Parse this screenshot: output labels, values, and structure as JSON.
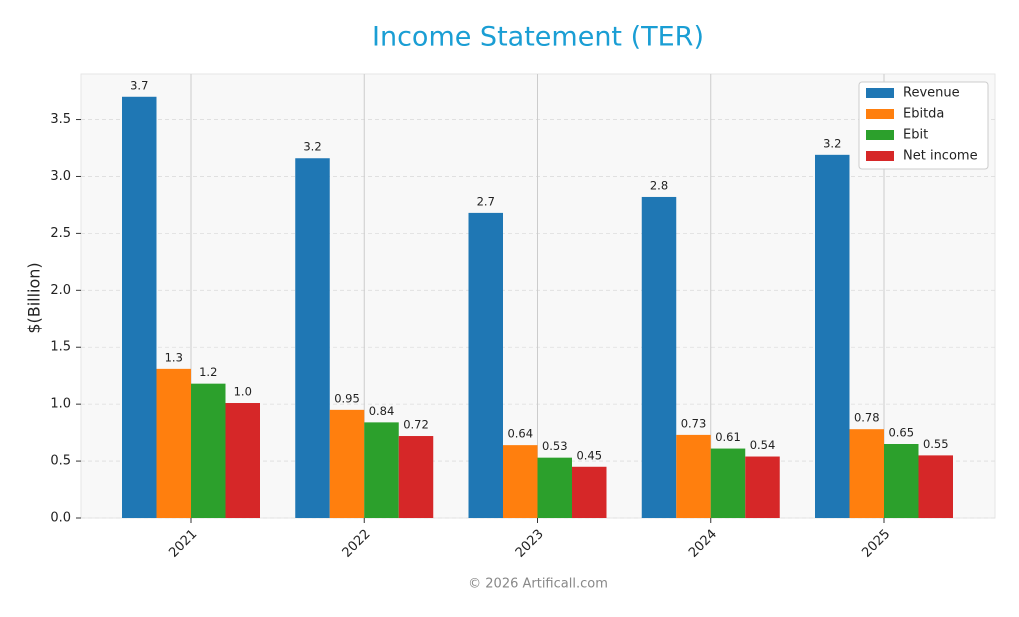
{
  "chart_data": {
    "type": "bar",
    "title": "Income Statement (TER)",
    "ylabel": "$(Billion)",
    "footer": "© 2026 Artificall.com",
    "categories": [
      "2021",
      "2022",
      "2023",
      "2024",
      "2025"
    ],
    "series": [
      {
        "name": "Revenue",
        "color": "#1f77b4",
        "values": [
          3.7,
          3.16,
          2.68,
          2.82,
          3.19
        ],
        "value_labels": [
          "3.7",
          "3.2",
          "2.7",
          "2.8",
          "3.2"
        ]
      },
      {
        "name": "Ebitda",
        "color": "#ff7f0e",
        "values": [
          1.31,
          0.95,
          0.64,
          0.73,
          0.78
        ],
        "value_labels": [
          "1.3",
          "0.95",
          "0.64",
          "0.73",
          "0.78"
        ]
      },
      {
        "name": "Ebit",
        "color": "#2ca02c",
        "values": [
          1.18,
          0.84,
          0.53,
          0.61,
          0.65
        ],
        "value_labels": [
          "1.2",
          "0.84",
          "0.53",
          "0.61",
          "0.65"
        ]
      },
      {
        "name": "Net income",
        "color": "#d62728",
        "values": [
          1.01,
          0.72,
          0.45,
          0.54,
          0.55
        ],
        "value_labels": [
          "1.0",
          "0.72",
          "0.45",
          "0.54",
          "0.55"
        ]
      }
    ],
    "ylim": [
      0,
      3.9
    ],
    "yticks": [
      {
        "value": 0,
        "label": "0.0"
      },
      {
        "value": 0.5,
        "label": "0.5"
      },
      {
        "value": 1,
        "label": "1.0"
      },
      {
        "value": 1.5,
        "label": "1.5"
      },
      {
        "value": 2,
        "label": "2.0"
      },
      {
        "value": 2.5,
        "label": "2.5"
      },
      {
        "value": 3,
        "label": "3.0"
      },
      {
        "value": 3.5,
        "label": "3.5"
      }
    ],
    "grid": true,
    "legend": "upper right"
  }
}
